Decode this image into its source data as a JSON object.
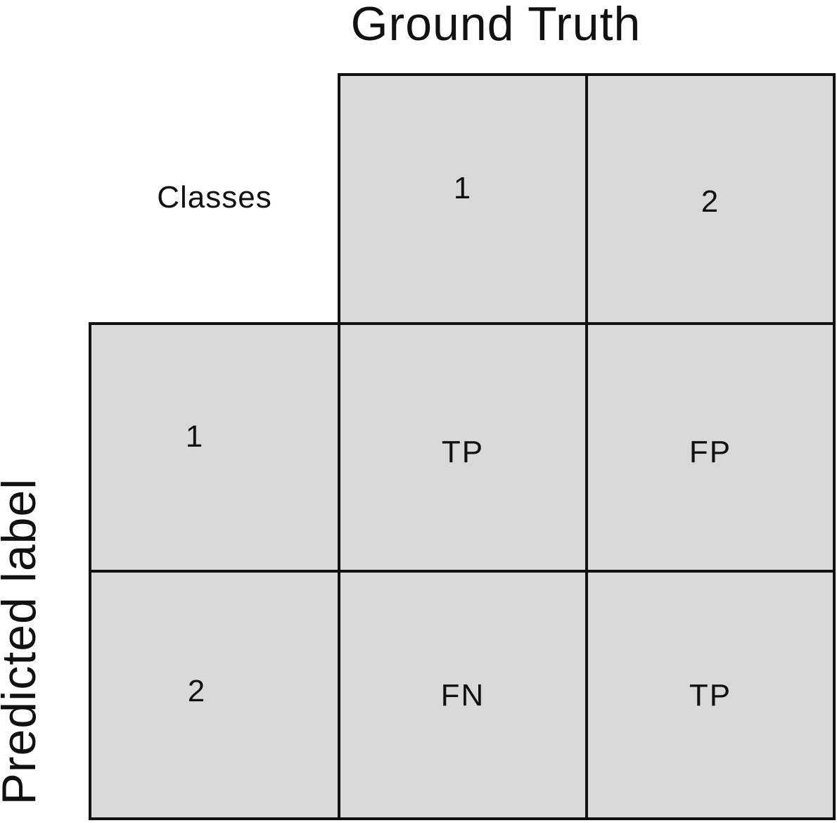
{
  "title": "Ground Truth",
  "ylabel": "Predicted label",
  "corner_label": "Classes",
  "column_headers": [
    "1",
    "2"
  ],
  "row_headers": [
    "1",
    "2"
  ],
  "cells": [
    [
      "TP",
      "FP"
    ],
    [
      "FN",
      "TP"
    ]
  ],
  "colors": {
    "cell_fill": "#d9d9d9",
    "border": "#111111",
    "text": "#111111"
  }
}
